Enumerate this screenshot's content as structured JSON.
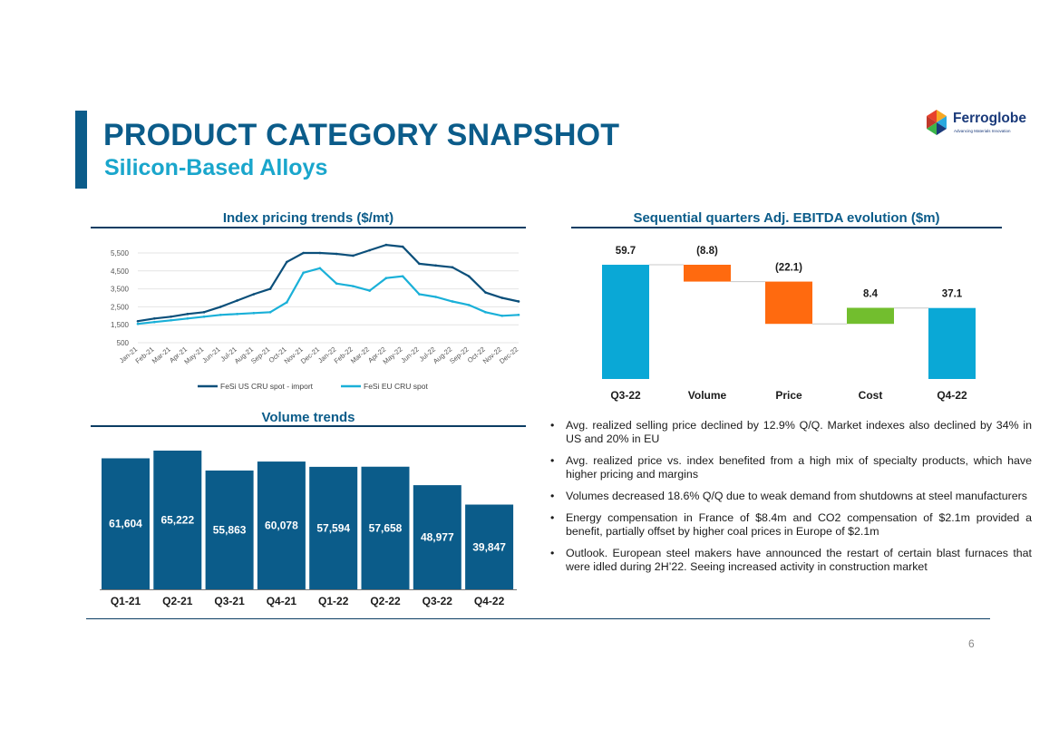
{
  "header": {
    "title": "PRODUCT CATEGORY SNAPSHOT",
    "subtitle": "Silicon-Based Alloys"
  },
  "logo": {
    "name": "Ferroglobe",
    "tagline": "Advancing Materials Innovation",
    "colors": [
      "#e8412c",
      "#f7a823",
      "#2aa9e0",
      "#3cb54a",
      "#1a3a7a"
    ]
  },
  "colors": {
    "primary": "#0b5c8a",
    "secondary": "#1aa6cc",
    "dark_line": "#0b3d63",
    "bar": "#0b5c8a",
    "waterfall_total": "#0aa8d6",
    "waterfall_negative": "#ff6a0f",
    "waterfall_positive": "#72be2e"
  },
  "chart_data": [
    {
      "type": "line",
      "title": "Index pricing trends ($/mt)",
      "categories": [
        "Jan-21",
        "Feb-21",
        "Mar-21",
        "Apr-21",
        "May-21",
        "Jun-21",
        "Jul-21",
        "Aug-21",
        "Sep-21",
        "Oct-21",
        "Nov-21",
        "Dec-21",
        "Jan-22",
        "Feb-22",
        "Mar-22",
        "Apr-22",
        "May-22",
        "Jun-22",
        "Jul-22",
        "Aug-22",
        "Sep-22",
        "Oct-22",
        "Nov-22",
        "Dec-22"
      ],
      "series": [
        {
          "name": "FeSi US CRU spot - import",
          "color": "#0b4f7a",
          "values": [
            1700,
            1850,
            1950,
            2100,
            2200,
            2500,
            2850,
            3200,
            3500,
            5000,
            5500,
            5500,
            5450,
            5350,
            5650,
            5950,
            5850,
            4900,
            4800,
            4700,
            4200,
            3300,
            3000,
            2800
          ]
        },
        {
          "name": "FeSi EU CRU spot",
          "color": "#1ab0d8",
          "values": [
            1550,
            1650,
            1750,
            1850,
            1950,
            2050,
            2100,
            2150,
            2200,
            2750,
            4400,
            4650,
            3800,
            3650,
            3400,
            4100,
            4200,
            3200,
            3050,
            2800,
            2600,
            2200,
            2000,
            2050
          ]
        }
      ],
      "ylim": [
        500,
        5500
      ],
      "yticks": [
        "500",
        "1,500",
        "2,500",
        "3,500",
        "4,500",
        "5,500"
      ],
      "legend": "bottom",
      "grid": true
    },
    {
      "type": "bar",
      "title": "Volume trends",
      "categories": [
        "Q1-21",
        "Q2-21",
        "Q3-21",
        "Q4-21",
        "Q1-22",
        "Q2-22",
        "Q3-22",
        "Q4-22"
      ],
      "values": [
        61604,
        65222,
        55863,
        60078,
        57594,
        57658,
        48977,
        39847
      ],
      "labels": [
        "61,604",
        "65,222",
        "55,863",
        "60,078",
        "57,594",
        "57,658",
        "48,977",
        "39,847"
      ],
      "color": "#0b5c8a"
    },
    {
      "type": "bar",
      "subtype": "waterfall",
      "title": "Sequential quarters Adj. EBITDA evolution ($m)",
      "categories": [
        "Q3-22",
        "Volume",
        "Price",
        "Cost",
        "Q4-22"
      ],
      "values": [
        59.7,
        -8.8,
        -22.1,
        8.4,
        37.1
      ],
      "labels": [
        "59.7",
        "(8.8)",
        "(22.1)",
        "8.4",
        "37.1"
      ],
      "kinds": [
        "total",
        "delta",
        "delta",
        "delta",
        "total"
      ]
    }
  ],
  "bullets": [
    "Avg. realized selling price declined by 12.9% Q/Q. Market indexes also declined by 34% in US and 20% in EU",
    "Avg. realized price vs. index benefited from a high mix of specialty products, which have higher pricing and margins",
    "Volumes decreased 18.6% Q/Q due to weak demand from shutdowns at steel manufacturers",
    "Energy compensation in France of $8.4m and CO2 compensation of $2.1m provided a benefit, partially offset by higher coal prices in Europe of $2.1m",
    "Outlook. European steel makers have announced the restart of certain blast furnaces that were idled during 2H’22. Seeing increased activity in construction market"
  ],
  "page_number": "6"
}
